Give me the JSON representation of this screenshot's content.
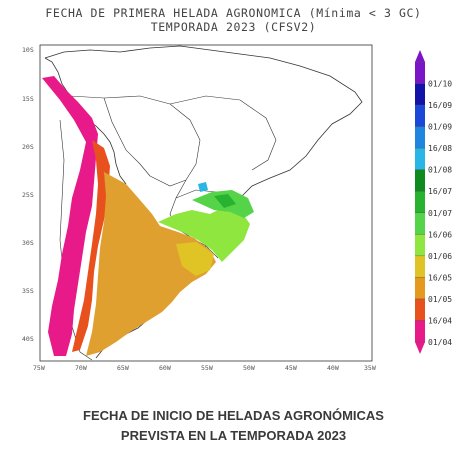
{
  "header": {
    "title_line1": "FECHA DE PRIMERA HELADA AGRONOMICA (Mínima < 3 GC)",
    "title_line2": "TEMPORADA 2023 (CFSV2)"
  },
  "map": {
    "lat_ticks": [
      "10S",
      "15S",
      "20S",
      "25S",
      "30S",
      "35S",
      "40S"
    ],
    "lon_ticks": [
      "75W",
      "70W",
      "65W",
      "60W",
      "55W",
      "50W",
      "45W",
      "40W",
      "35W"
    ]
  },
  "legend": {
    "labels": [
      "01/10",
      "16/09",
      "01/09",
      "16/08",
      "01/08",
      "16/07",
      "01/07",
      "16/06",
      "01/06",
      "16/05",
      "01/05",
      "16/04",
      "01/04"
    ],
    "colors": [
      "#7b16c8",
      "#1313a8",
      "#1a48d8",
      "#1f86e0",
      "#28b6e6",
      "#0f8a1e",
      "#27b330",
      "#55d44a",
      "#8ee63e",
      "#e0c425",
      "#e49a1e",
      "#e8501e",
      "#e81a8a"
    ]
  },
  "caption": {
    "line1": "FECHA DE INICIO DE HELADAS AGRONÓMICAS",
    "line2": "PREVISTA EN LA TEMPORADA 2023"
  }
}
